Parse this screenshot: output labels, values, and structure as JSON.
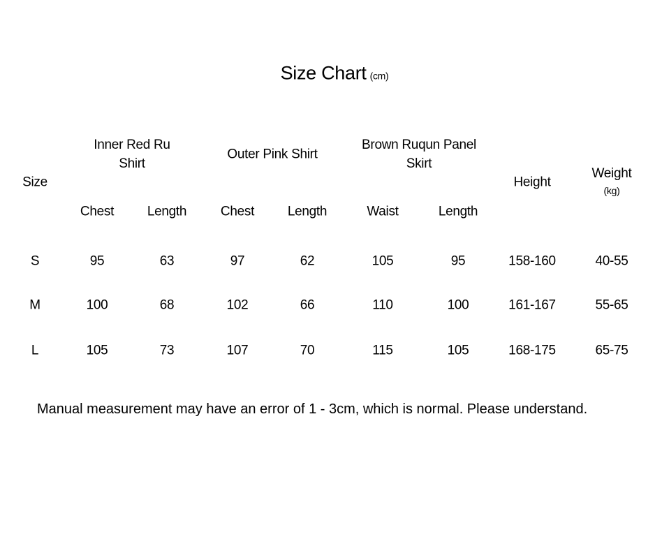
{
  "title": "Size Chart",
  "title_unit": "(cm)",
  "headers": {
    "size": "Size",
    "groups": [
      "Inner Red Ru\nShirt",
      "Outer Pink Shirt",
      "Brown Ruqun Panel\nSkirt"
    ],
    "group_lines": [
      [
        "Inner Red Ru",
        "Shirt"
      ],
      [
        "Outer Pink Shirt"
      ],
      [
        "Brown Ruqun Panel",
        "Skirt"
      ]
    ],
    "sub": [
      "Chest",
      "Length",
      "Chest",
      "Length",
      "Waist",
      "Length"
    ],
    "height": "Height",
    "weight": "Weight",
    "weight_unit": "(kg)"
  },
  "rows": [
    [
      "S",
      "95",
      "63",
      "97",
      "62",
      "105",
      "95",
      "158-160",
      "40-55"
    ],
    [
      "M",
      "100",
      "68",
      "102",
      "66",
      "110",
      "100",
      "161-167",
      "55-65"
    ],
    [
      "L",
      "105",
      "73",
      "107",
      "70",
      "115",
      "105",
      "168-175",
      "65-75"
    ]
  ],
  "note": "Manual measurement may have an error of 1 - 3cm, which is normal. Please understand."
}
